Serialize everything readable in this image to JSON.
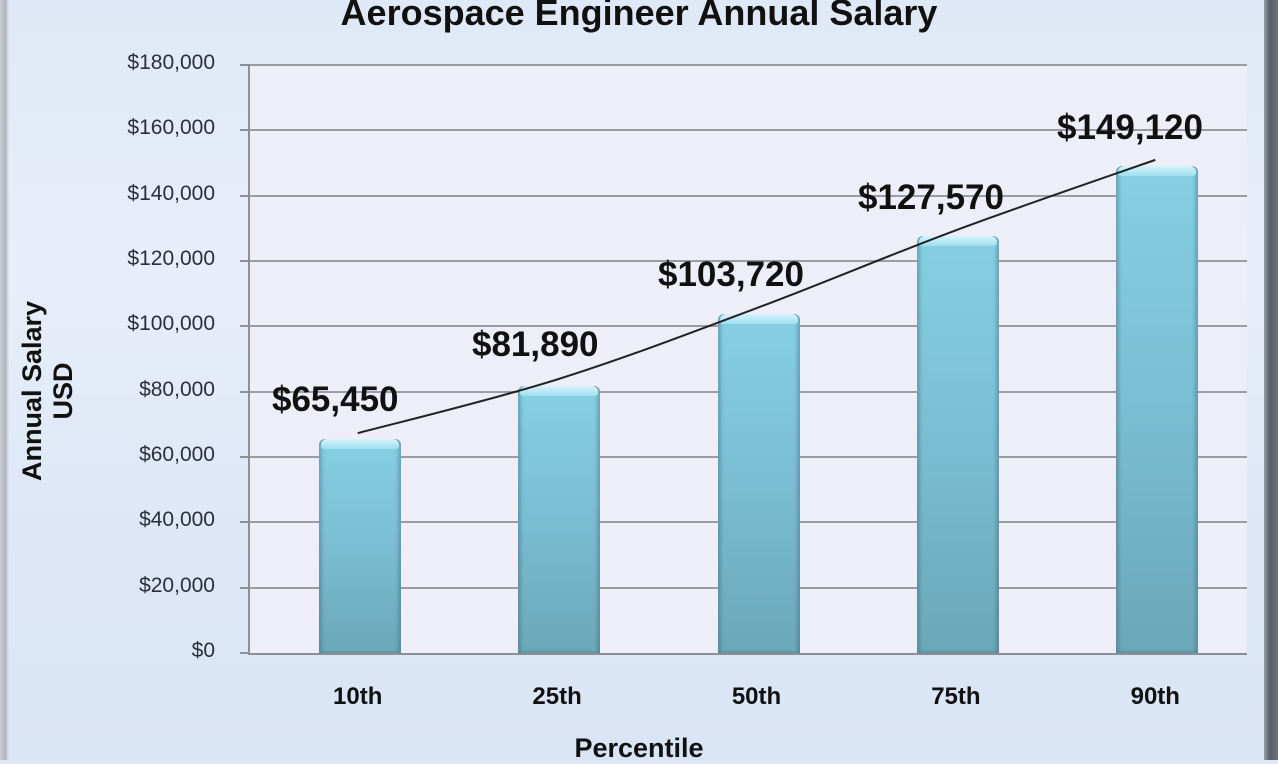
{
  "chart_data": {
    "type": "bar",
    "title": "Aerospace Engineer Annual Salary",
    "xlabel": "Percentile",
    "ylabel": "Annual Salary USD",
    "categories": [
      "10th",
      "25th",
      "50th",
      "75th",
      "90th"
    ],
    "values": [
      65450,
      81890,
      103720,
      127570,
      149120
    ],
    "data_labels": [
      "$65,450",
      "$81,890",
      "$103,720",
      "$127,570",
      "$149,120"
    ],
    "ylim": [
      0,
      180000
    ],
    "yticks": [
      0,
      20000,
      40000,
      60000,
      80000,
      100000,
      120000,
      140000,
      160000,
      180000
    ],
    "ytick_labels": [
      "$0",
      "$20,000",
      "$40,000",
      "$60,000",
      "$80,000",
      "$100,000",
      "$120,000",
      "$140,000",
      "$160,000",
      "$180,000"
    ],
    "grid": true,
    "legend": "none",
    "trendline": "exponential-style curve through bar tops",
    "colors": {
      "bar": "#7cc3d8",
      "grid": "#9a9ca4",
      "plot_bg": "#eeeef8",
      "trendline": "#222222"
    }
  }
}
